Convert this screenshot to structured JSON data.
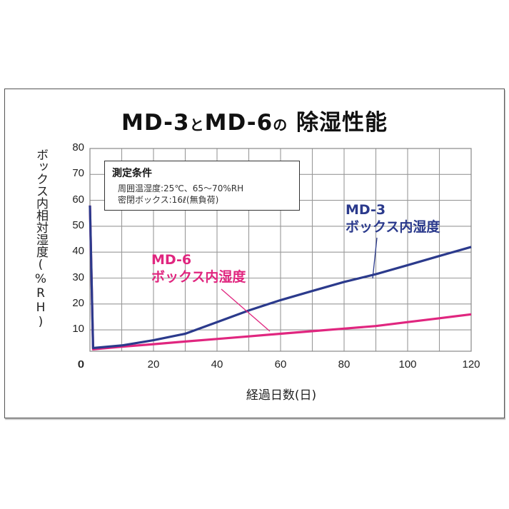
{
  "title": {
    "part1": "MD-3",
    "and": "と",
    "part2": "MD-6",
    "no": "の",
    "part3": "除湿性能"
  },
  "conditions": {
    "heading": "測定条件",
    "line1": "周囲温湿度:25℃、65〜70%RH",
    "line2": "密閉ボックス:16ℓ(無負荷)"
  },
  "labels": {
    "md3_name": "MD-3",
    "md3_desc": "ボックス内湿度",
    "md6_name": "MD-6",
    "md6_desc": "ボックス内湿度"
  },
  "colors": {
    "md3": "#2b3a8c",
    "md6": "#e0267f",
    "grid": "#999999"
  },
  "chart_data": {
    "type": "line",
    "title": "MD-3とMD-6の除湿性能",
    "xlabel": "経過日数(日)",
    "ylabel": "ボックス内相対湿度(%RH)",
    "xlim": [
      0,
      120
    ],
    "ylim": [
      0,
      80
    ],
    "x_ticks": [
      "0",
      "20",
      "40",
      "60",
      "80",
      "100",
      "120"
    ],
    "y_ticks": [
      "80",
      "70",
      "60",
      "50",
      "40",
      "30",
      "20",
      "10",
      "0"
    ],
    "grid": true,
    "annotations": [
      "測定条件",
      "周囲温湿度:25℃、65〜70%RH",
      "密閉ボックス:16ℓ(無負荷)"
    ],
    "series": [
      {
        "name": "MD-3 ボックス内湿度",
        "color": "#2b3a8c",
        "x": [
          0,
          1,
          10,
          20,
          30,
          40,
          50,
          60,
          70,
          80,
          90,
          100,
          110,
          120
        ],
        "y": [
          58,
          3,
          4,
          6,
          8.5,
          13,
          17.5,
          21.5,
          25,
          28.5,
          31.5,
          35,
          38.5,
          42
        ]
      },
      {
        "name": "MD-6 ボックス内湿度",
        "color": "#e0267f",
        "x": [
          0,
          1,
          10,
          20,
          30,
          40,
          50,
          60,
          70,
          80,
          90,
          100,
          110,
          120
        ],
        "y": [
          58,
          2.5,
          3.5,
          4.5,
          5.5,
          6.5,
          7.5,
          8.5,
          9.5,
          10.5,
          11.5,
          13,
          14.5,
          16
        ]
      }
    ]
  }
}
